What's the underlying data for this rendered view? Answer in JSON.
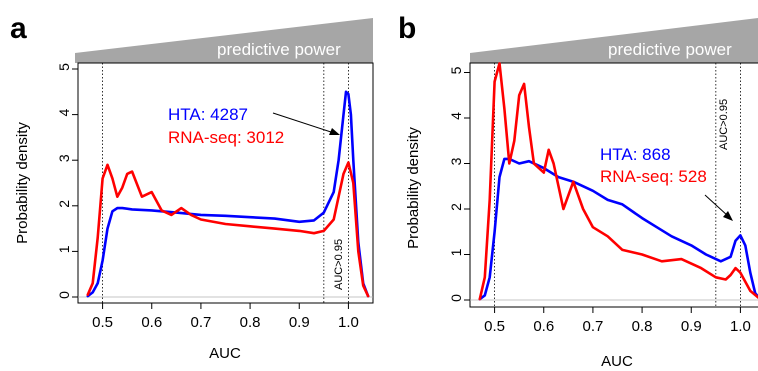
{
  "chart_data": [
    {
      "panel": "a",
      "type": "line",
      "banner": "predictive power",
      "xlabel": "AUC",
      "ylabel": "Probability density",
      "xlim": [
        0.45,
        1.05
      ],
      "ylim": [
        0,
        5
      ],
      "xticks": [
        0.5,
        0.6,
        0.7,
        0.8,
        0.9,
        1.0
      ],
      "xtick_labels": [
        "0.5",
        "0.6",
        "0.7",
        "0.8",
        "0.9",
        "1.0"
      ],
      "yticks": [
        0,
        1,
        2,
        3,
        4,
        5
      ],
      "ytick_labels": [
        "0",
        "1",
        "2",
        "3",
        "4",
        "5"
      ],
      "vlines": [
        0.5,
        0.95,
        1.0
      ],
      "vline_label": "AUC>0.95",
      "series": [
        {
          "name": "HTA: 4287",
          "color": "#0000ff",
          "x": [
            0.47,
            0.48,
            0.49,
            0.5,
            0.51,
            0.52,
            0.53,
            0.54,
            0.56,
            0.6,
            0.65,
            0.7,
            0.75,
            0.8,
            0.85,
            0.9,
            0.93,
            0.95,
            0.97,
            0.98,
            0.99,
            0.995,
            1.0,
            1.005,
            1.01,
            1.02,
            1.03,
            1.04
          ],
          "y": [
            0.02,
            0.1,
            0.3,
            0.8,
            1.5,
            1.88,
            1.95,
            1.95,
            1.92,
            1.9,
            1.85,
            1.8,
            1.78,
            1.75,
            1.72,
            1.65,
            1.68,
            1.85,
            2.3,
            3.0,
            4.0,
            4.5,
            4.45,
            4.0,
            3.0,
            1.2,
            0.3,
            0.02
          ]
        },
        {
          "name": "RNA-seq: 3012",
          "color": "#ff0000",
          "x": [
            0.47,
            0.48,
            0.49,
            0.5,
            0.51,
            0.52,
            0.53,
            0.54,
            0.55,
            0.56,
            0.58,
            0.6,
            0.62,
            0.64,
            0.66,
            0.68,
            0.7,
            0.75,
            0.8,
            0.85,
            0.9,
            0.93,
            0.95,
            0.97,
            0.98,
            0.99,
            1.0,
            1.01,
            1.02,
            1.03,
            1.04
          ],
          "y": [
            0.05,
            0.3,
            1.3,
            2.6,
            2.9,
            2.6,
            2.2,
            2.4,
            2.7,
            2.75,
            2.2,
            2.3,
            1.9,
            1.8,
            1.95,
            1.8,
            1.7,
            1.6,
            1.55,
            1.5,
            1.45,
            1.4,
            1.45,
            1.7,
            2.2,
            2.7,
            2.95,
            2.5,
            1.0,
            0.25,
            0.02
          ]
        }
      ],
      "annotation": "HTA: 4287 / RNA-seq: 3012"
    },
    {
      "panel": "b",
      "type": "line",
      "banner": "predictive power",
      "xlabel": "AUC",
      "ylabel": "Probability density",
      "xlim": [
        0.45,
        1.05
      ],
      "ylim": [
        0,
        5
      ],
      "xticks": [
        0.5,
        0.6,
        0.7,
        0.8,
        0.9,
        1.0
      ],
      "xtick_labels": [
        "0.5",
        "0.6",
        "0.7",
        "0.8",
        "0.9",
        "1.0"
      ],
      "yticks": [
        0,
        1,
        2,
        3,
        4,
        5
      ],
      "ytick_labels": [
        "0",
        "1",
        "2",
        "3",
        "4",
        "5"
      ],
      "vlines": [
        0.5,
        0.95,
        1.0
      ],
      "vline_label": "AUC>0.95",
      "series": [
        {
          "name": "HTA: 868",
          "color": "#0000ff",
          "x": [
            0.47,
            0.48,
            0.49,
            0.5,
            0.51,
            0.52,
            0.53,
            0.55,
            0.57,
            0.6,
            0.63,
            0.66,
            0.7,
            0.73,
            0.76,
            0.8,
            0.83,
            0.86,
            0.9,
            0.93,
            0.96,
            0.98,
            0.99,
            1.0,
            1.01,
            1.02,
            1.03,
            1.04
          ],
          "y": [
            0.02,
            0.1,
            0.5,
            1.5,
            2.7,
            3.1,
            3.1,
            3.0,
            3.05,
            2.9,
            2.7,
            2.6,
            2.4,
            2.2,
            2.1,
            1.8,
            1.6,
            1.4,
            1.2,
            1.0,
            0.85,
            0.95,
            1.3,
            1.42,
            1.2,
            0.6,
            0.15,
            0.02
          ]
        },
        {
          "name": "RNA-seq: 528",
          "color": "#ff0000",
          "x": [
            0.47,
            0.48,
            0.49,
            0.5,
            0.51,
            0.52,
            0.53,
            0.54,
            0.55,
            0.56,
            0.57,
            0.58,
            0.6,
            0.61,
            0.62,
            0.64,
            0.66,
            0.68,
            0.7,
            0.73,
            0.76,
            0.8,
            0.84,
            0.88,
            0.92,
            0.95,
            0.97,
            0.98,
            0.99,
            1.0,
            1.02,
            1.04
          ],
          "y": [
            0.02,
            0.5,
            2.2,
            4.8,
            5.2,
            4.2,
            3.0,
            3.5,
            4.5,
            4.75,
            3.8,
            3.0,
            2.8,
            3.3,
            3.0,
            2.0,
            2.6,
            2.0,
            1.6,
            1.4,
            1.1,
            1.0,
            0.85,
            0.9,
            0.7,
            0.5,
            0.45,
            0.55,
            0.7,
            0.6,
            0.2,
            0.02
          ]
        }
      ],
      "annotation": "HTA: 868 / RNA-seq: 528"
    }
  ]
}
